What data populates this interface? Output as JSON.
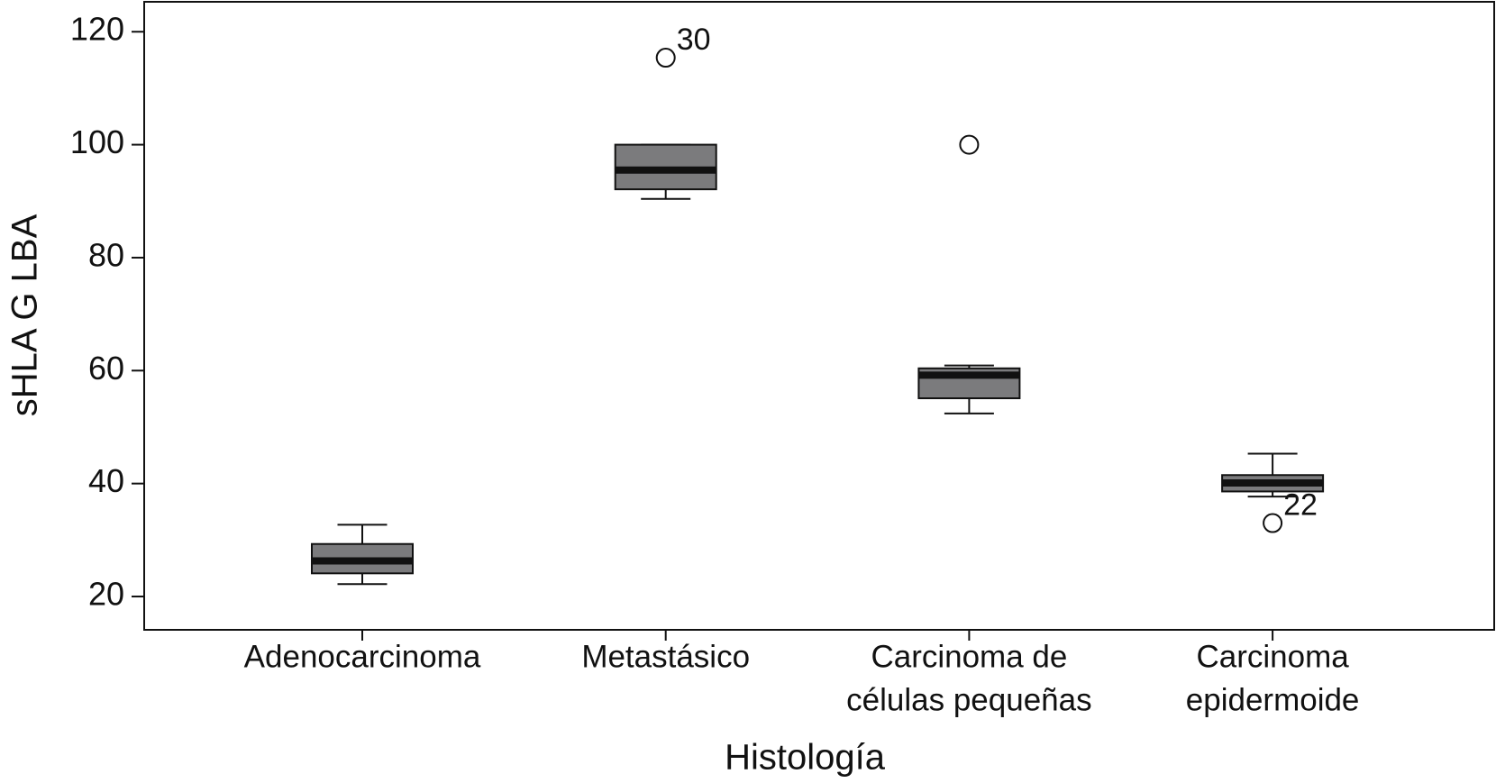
{
  "chart_data": {
    "type": "box",
    "x_label": "Histología",
    "y_label": "sHLA G LBA",
    "categories": [
      [
        "Adenocarcinoma"
      ],
      [
        "Metastásico"
      ],
      [
        "Carcinoma de",
        "células pequeñas"
      ],
      [
        "Carcinoma",
        "epidermoide"
      ]
    ],
    "boxes": [
      {
        "min": 22.2,
        "q1": 24.1,
        "median": 26.3,
        "q3": 29.3,
        "max": 32.7,
        "outliers": []
      },
      {
        "min": 90.4,
        "q1": 92.1,
        "median": 95.5,
        "q3": 100,
        "max": 100,
        "outliers": [
          {
            "value": 115.4,
            "label": "30"
          }
        ]
      },
      {
        "min": 52.4,
        "q1": 55.1,
        "median": 59.2,
        "q3": 60.4,
        "max": 60.9,
        "outliers": [
          {
            "value": 100
          }
        ]
      },
      {
        "min": 37.7,
        "q1": 38.6,
        "median": 40.1,
        "q3": 41.5,
        "max": 45.3,
        "outliers": [
          {
            "value": 33,
            "label": "22"
          }
        ]
      }
    ],
    "color": "#7b7b7d",
    "ylim": [
      14.1,
      125.3
    ],
    "yticks": [
      20,
      40,
      60,
      80,
      100,
      120
    ]
  }
}
